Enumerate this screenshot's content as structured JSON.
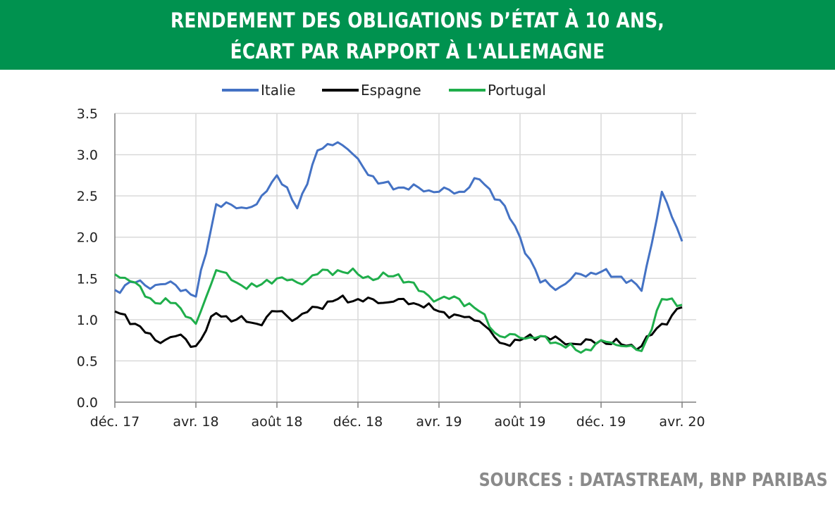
{
  "title_line1": "RENDEMENT DES OBLIGATIONS D’ÉTAT À 10 ANS,",
  "title_line2": "ÉCART PAR RAPPORT À L'ALLEMAGNE",
  "source": "SOURCES : DATASTREAM, BNP PARIBAS",
  "colors": {
    "banner": "#00924f",
    "italie": "#4472c4",
    "espagne": "#000000",
    "portugal": "#1fae4b",
    "grid": "#d9d9d9",
    "axis": "#7f7f7f"
  },
  "chart_data": {
    "type": "line",
    "title": "",
    "xlabel": "",
    "ylabel": "",
    "ylim": [
      0.0,
      3.5
    ],
    "y_ticks": [
      "0.0",
      "0.5",
      "1.0",
      "1.5",
      "2.0",
      "2.5",
      "3.0",
      "3.5"
    ],
    "x_ticks": [
      "déc. 17",
      "avr. 18",
      "août 18",
      "déc. 18",
      "avr. 19",
      "août 19",
      "déc. 19",
      "avr. 20"
    ],
    "grid": true,
    "legend_position": "top",
    "x": [
      "2017-12",
      "2018-01",
      "2018-02",
      "2018-03",
      "2018-04",
      "2018-05",
      "2018-06",
      "2018-07",
      "2018-08",
      "2018-09",
      "2018-10",
      "2018-11",
      "2018-12",
      "2019-01",
      "2019-02",
      "2019-03",
      "2019-04",
      "2019-05",
      "2019-06",
      "2019-07",
      "2019-08",
      "2019-09",
      "2019-10",
      "2019-11",
      "2019-12",
      "2020-01",
      "2020-02",
      "2020-03",
      "2020-04"
    ],
    "series": [
      {
        "name": "Italie",
        "color": "#4472c4",
        "values": [
          1.36,
          1.45,
          1.42,
          1.42,
          1.28,
          2.4,
          2.35,
          2.4,
          2.75,
          2.35,
          3.05,
          3.15,
          2.95,
          2.65,
          2.6,
          2.6,
          2.55,
          2.55,
          2.7,
          2.45,
          2.0,
          1.45,
          1.4,
          1.55,
          1.58,
          1.52,
          1.35,
          2.55,
          1.95
        ]
      },
      {
        "name": "Espagne",
        "color": "#000000",
        "values": [
          1.1,
          0.95,
          0.75,
          0.8,
          0.68,
          1.08,
          1.0,
          0.95,
          1.1,
          1.02,
          1.15,
          1.25,
          1.25,
          1.2,
          1.25,
          1.18,
          1.1,
          1.05,
          0.98,
          0.72,
          0.75,
          0.8,
          0.75,
          0.7,
          0.75,
          0.7,
          0.68,
          0.95,
          1.15
        ]
      },
      {
        "name": "Portugal",
        "color": "#1fae4b",
        "values": [
          1.55,
          1.45,
          1.2,
          1.2,
          0.95,
          1.6,
          1.45,
          1.4,
          1.5,
          1.45,
          1.55,
          1.6,
          1.55,
          1.5,
          1.55,
          1.35,
          1.25,
          1.25,
          1.1,
          0.8,
          0.78,
          0.8,
          0.7,
          0.6,
          0.75,
          0.68,
          0.62,
          1.25,
          1.18
        ]
      }
    ]
  }
}
